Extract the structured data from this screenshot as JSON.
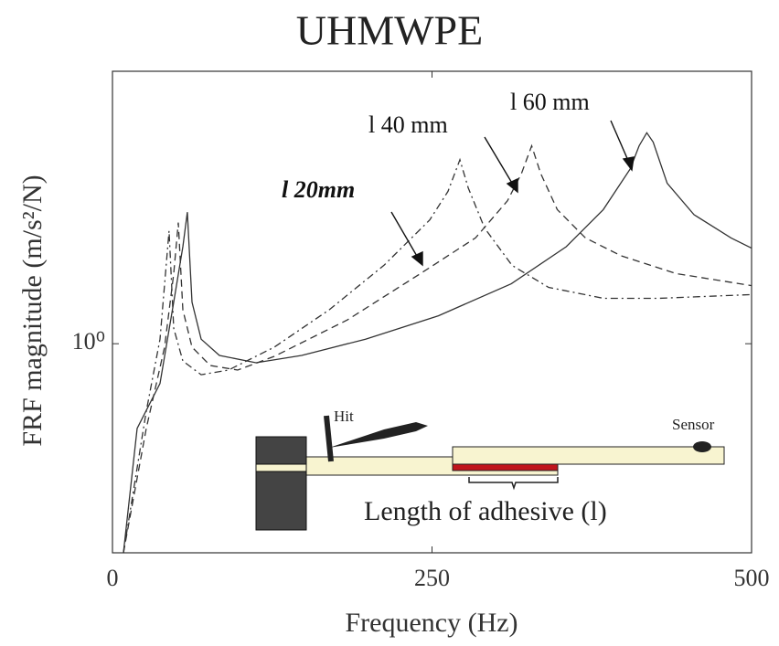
{
  "chart_data": {
    "type": "line",
    "title": "UHMWPE",
    "xlabel": "Frequency (Hz)",
    "ylabel": "FRF magnitude (m/s²/N)",
    "xlim": [
      0,
      500
    ],
    "xticks": [
      0,
      250,
      500
    ],
    "ylim": [
      0.4,
      3.3
    ],
    "yticks": [
      {
        "value": 1,
        "label": "10⁰"
      }
    ],
    "ylog": true,
    "grid": false,
    "series": [
      {
        "name": "l 60 mm",
        "color": "#333333",
        "dash": "solid",
        "x": [
          8.6,
          19.3,
          37.2,
          47.9,
          55.1,
          58.6,
          62.2,
          69.4,
          83.7,
          112.3,
          148,
          198,
          255,
          312,
          355,
          384,
          405,
          412,
          418,
          423,
          434,
          455,
          484,
          500
        ],
        "values": [
          0.4,
          0.69,
          0.84,
          1.2,
          1.53,
          1.78,
          1.2,
          1.02,
          0.95,
          0.92,
          0.95,
          1.02,
          1.13,
          1.3,
          1.53,
          1.8,
          2.15,
          2.38,
          2.52,
          2.42,
          2.02,
          1.76,
          1.59,
          1.52
        ]
      },
      {
        "name": "l 40 mm",
        "color": "#333333",
        "dash": "dashed",
        "x": [
          8.6,
          26.5,
          40.8,
          47.9,
          51.5,
          55.1,
          62.2,
          76.5,
          98,
          126.6,
          183.8,
          241,
          284,
          309,
          320,
          328,
          335,
          348,
          370,
          398,
          441,
          500
        ],
        "values": [
          0.4,
          0.69,
          0.985,
          1.36,
          1.7,
          1.16,
          0.985,
          0.909,
          0.891,
          0.946,
          1.11,
          1.36,
          1.59,
          1.87,
          2.11,
          2.38,
          2.11,
          1.8,
          1.59,
          1.47,
          1.36,
          1.29
        ]
      },
      {
        "name": "l 20mm",
        "color": "#333333",
        "dash": "dashdot",
        "x": [
          8.6,
          26.5,
          37.2,
          44.3,
          47.9,
          55.1,
          69.4,
          90.8,
          126.6,
          169.5,
          212.4,
          248.2,
          262.5,
          271.8,
          278.3,
          291.1,
          312.6,
          341.2,
          384.2,
          427,
          500
        ],
        "values": [
          0.4,
          0.744,
          1.02,
          1.64,
          1.07,
          0.927,
          0.873,
          0.891,
          0.985,
          1.16,
          1.41,
          1.72,
          1.95,
          2.24,
          1.98,
          1.66,
          1.41,
          1.28,
          1.22,
          1.22,
          1.24
        ]
      }
    ],
    "inset_labels": {
      "hit": "Hit",
      "sensor": "Sensor",
      "length": "Length of adhesive (l)"
    }
  }
}
